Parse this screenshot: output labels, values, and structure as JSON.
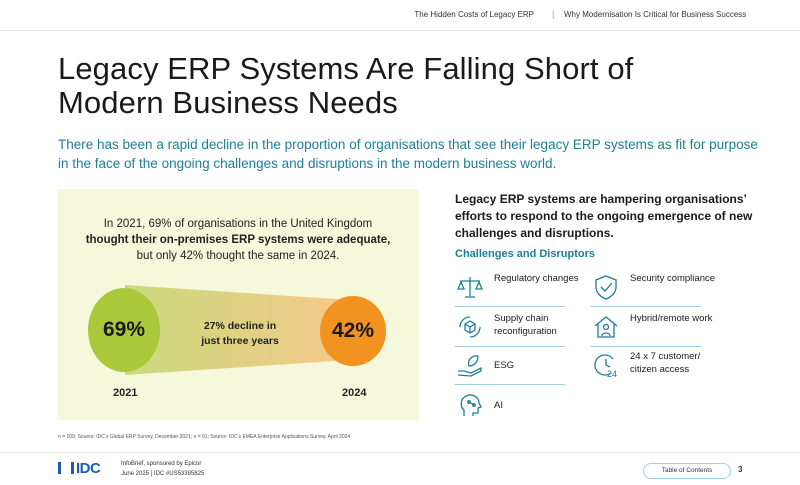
{
  "header": {
    "left_title": "The Hidden Costs of Legacy ERP",
    "separator": "|",
    "right_title": "Why Modernisation Is Critical for Business Success"
  },
  "page": {
    "title": "Legacy ERP Systems Are Falling Short of Modern Business Needs",
    "subtitle": "There has been a rapid decline in the proportion of organisations that see their legacy ERP systems as fit for purpose in the face of the ongoing challenges and disruptions in the modern business world."
  },
  "stat_panel": {
    "line1": "In 2021, 69% of organisations in the United Kingdom",
    "line2": "thought their on-premises ERP systems were adequate,",
    "line3": "but only 42% thought the same in 2024.",
    "value_2021": "69%",
    "value_2024": "42%",
    "decline_line1": "27% decline in",
    "decline_line2": "just three years",
    "year_2021": "2021",
    "year_2024": "2024",
    "color_2021": "#aac83a",
    "color_2024": "#f29321"
  },
  "right": {
    "heading": "Legacy ERP systems are hampering organisations’ efforts to respond to the ongoing emergence of new challenges and disruptions.",
    "challenges_title": "Challenges and Disruptors",
    "items": [
      {
        "label": "Regulatory changes",
        "icon": "scales-icon"
      },
      {
        "label": "Security compliance",
        "icon": "shield-icon"
      },
      {
        "label": "Supply chain reconfiguration",
        "icon": "supply-chain-icon"
      },
      {
        "label": "Hybrid/remote work",
        "icon": "home-person-icon"
      },
      {
        "label": "ESG",
        "icon": "hand-leaf-icon"
      },
      {
        "label": "24 x 7 customer/ citizen access",
        "icon": "clock-24-icon"
      },
      {
        "label": "AI",
        "icon": "ai-head-icon"
      }
    ]
  },
  "footnote": "n = 109; Source: IDC’s Global ERP Survey, December 2021; n = 91; Source: IDC’s EMEA Enterprise Applications Survey, April 2024",
  "footer": {
    "logo": "IDC",
    "line1": "InfoBrief, sponsored by Epicor",
    "line2": "June 2025   |   IDC #US53385825",
    "toc_label": "Table of Contents",
    "page_number": "3"
  },
  "colors": {
    "accent_teal": "#1b7f97",
    "panel_bg": "#f6f8dc",
    "idc_blue": "#1b5ea8"
  }
}
